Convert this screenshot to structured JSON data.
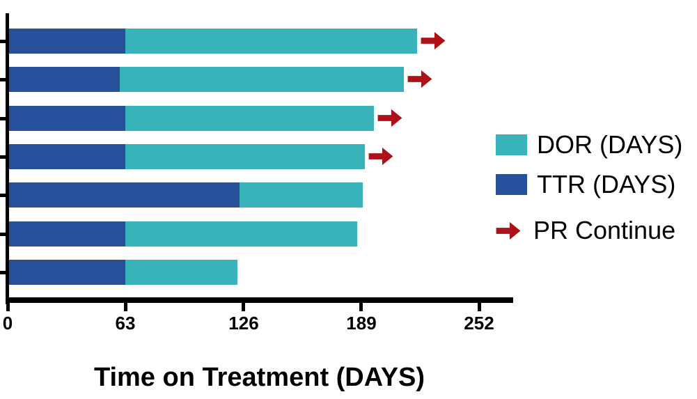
{
  "colors": {
    "dor_teal": "#39B3BA",
    "ttr_blue": "#284F9A",
    "arrow_red": "#AE1117",
    "axis_black": "#000000",
    "background": "#FFFFFF"
  },
  "legend": {
    "items": [
      {
        "type": "swatch",
        "series": "dor",
        "label": "DOR (DAYS)"
      },
      {
        "type": "swatch",
        "series": "ttr",
        "label": "TTR (DAYS)"
      },
      {
        "type": "arrow",
        "series": "pr_continue",
        "label": "PR Continue"
      }
    ]
  },
  "chart_data": {
    "type": "bar",
    "orientation": "horizontal",
    "stacked": true,
    "title": "",
    "xlabel": "Time on Treatment (DAYS)",
    "ylabel": "",
    "x_ticks": [
      0,
      63,
      126,
      189,
      252
    ],
    "xlim": [
      0,
      270
    ],
    "grid": false,
    "legend_position": "right",
    "series_names": [
      "TTR (DAYS)",
      "DOR (DAYS)"
    ],
    "bars": [
      {
        "ttr_days": 63,
        "dor_days": 156,
        "total_days": 219,
        "pr_continue": true
      },
      {
        "ttr_days": 60,
        "dor_days": 152,
        "total_days": 212,
        "pr_continue": true
      },
      {
        "ttr_days": 63,
        "dor_days": 133,
        "total_days": 196,
        "pr_continue": true
      },
      {
        "ttr_days": 63,
        "dor_days": 128,
        "total_days": 191,
        "pr_continue": true
      },
      {
        "ttr_days": 124,
        "dor_days": 66,
        "total_days": 190,
        "pr_continue": false
      },
      {
        "ttr_days": 63,
        "dor_days": 124,
        "total_days": 187,
        "pr_continue": false
      },
      {
        "ttr_days": 63,
        "dor_days": 60,
        "total_days": 123,
        "pr_continue": false
      }
    ]
  }
}
